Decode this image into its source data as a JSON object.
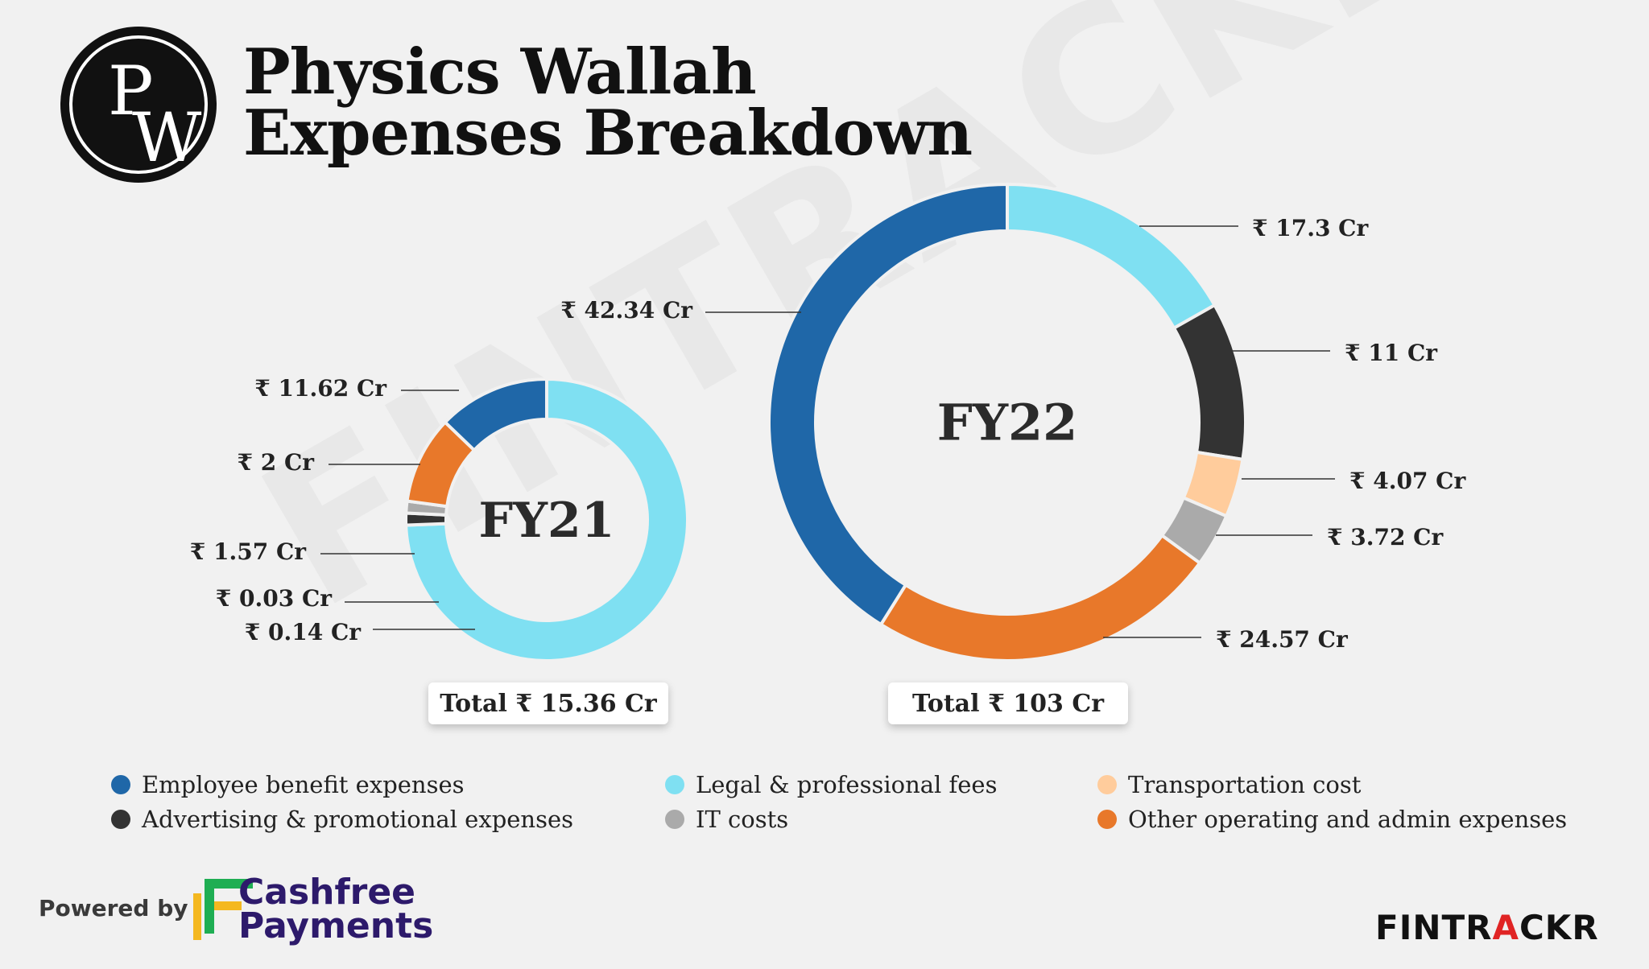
{
  "header": {
    "title_line1": "Physics Wallah",
    "title_line2": "Expenses Breakdown",
    "logo_text": "PW"
  },
  "watermark": "FINTRACKR",
  "colors": {
    "employee": "#1f67a8",
    "legal": "#7fe0f2",
    "transport": "#ffcc9c",
    "advertising": "#333333",
    "it": "#aaaaaa",
    "other": "#e8782a",
    "background": "#f1f1f1"
  },
  "chart_data": [
    {
      "type": "pie",
      "center_label": "FY21",
      "total_label": "Total ₹ 15.36 Cr",
      "slices": [
        {
          "series": "legal",
          "value": 11.62,
          "label": "₹ 11.62 Cr"
        },
        {
          "series": "advertising",
          "value": 0.14,
          "label": "₹ 0.14 Cr"
        },
        {
          "series": "it",
          "value": 0.03,
          "label": "₹ 0.03 Cr"
        },
        {
          "series": "other",
          "value": 1.57,
          "label": "₹ 1.57 Cr"
        },
        {
          "series": "employee",
          "value": 2,
          "label": "₹ 2 Cr"
        }
      ]
    },
    {
      "type": "pie",
      "center_label": "FY22",
      "total_label": "Total ₹ 103 Cr",
      "slices": [
        {
          "series": "legal",
          "value": 17.3,
          "label": "₹ 17.3 Cr"
        },
        {
          "series": "advertising",
          "value": 11,
          "label": "₹ 11 Cr"
        },
        {
          "series": "transport",
          "value": 4.07,
          "label": "₹ 4.07 Cr"
        },
        {
          "series": "it",
          "value": 3.72,
          "label": "₹ 3.72 Cr"
        },
        {
          "series": "other",
          "value": 24.57,
          "label": "₹ 24.57 Cr"
        },
        {
          "series": "employee",
          "value": 42.34,
          "label": "₹ 42.34 Cr"
        }
      ]
    }
  ],
  "legend": {
    "items": [
      {
        "key": "employee",
        "label": "Employee benefit expenses"
      },
      {
        "key": "legal",
        "label": "Legal & professional fees"
      },
      {
        "key": "transport",
        "label": "Transportation cost"
      },
      {
        "key": "advertising",
        "label": "Advertising & promotional expenses"
      },
      {
        "key": "it",
        "label": "IT costs"
      },
      {
        "key": "other",
        "label": "Other operating and admin expenses"
      }
    ]
  },
  "footer": {
    "powered_by": "Powered by",
    "cashfree_line1": "Cashfree",
    "cashfree_line2": "Payments",
    "fintrackr_prefix": "FINTR",
    "fintrackr_accent": "A",
    "fintrackr_suffix": "CKR"
  }
}
